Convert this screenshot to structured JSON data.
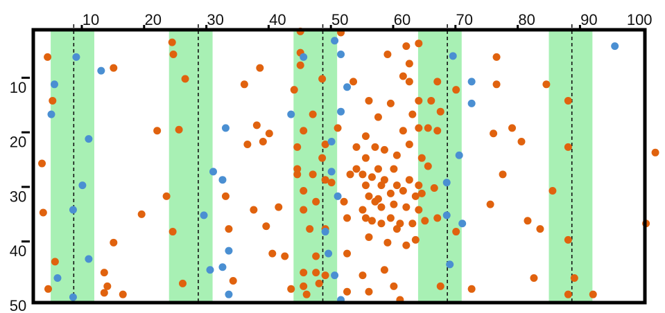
{
  "chart_data": {
    "type": "scatter",
    "title": "",
    "xlabel": "",
    "ylabel": "",
    "xlim": [
      0,
      100
    ],
    "ylim": [
      50,
      0
    ],
    "y_axis_inverted": true,
    "grid": false,
    "legend": "none",
    "x_ticks": [
      10,
      20,
      30,
      40,
      50,
      60,
      70,
      80,
      90,
      100
    ],
    "y_ticks": [
      10,
      20,
      30,
      40,
      50
    ],
    "bands": [
      {
        "from": 5,
        "to": 12,
        "center": 8.7
      },
      {
        "from": 24,
        "to": 31,
        "center": 28.7
      },
      {
        "from": 44,
        "to": 51,
        "center": 48.7
      },
      {
        "from": 64,
        "to": 71,
        "center": 68.7
      },
      {
        "from": 85,
        "to": 92,
        "center": 88.7
      }
    ],
    "colors": {
      "band": "#a8f0b4",
      "center_line": "#111111",
      "orange": "#e0620e",
      "blue": "#4a8fd2",
      "frame": "#000000"
    },
    "series": [
      {
        "color": "orange",
        "points": [
          [
            4.5,
            5
          ],
          [
            3.6,
            24.5
          ],
          [
            3.8,
            33.5
          ],
          [
            4.6,
            47.5
          ],
          [
            5.3,
            13
          ],
          [
            5.7,
            42.5
          ],
          [
            13.6,
            44.5
          ],
          [
            14.1,
            47
          ],
          [
            15.1,
            7
          ],
          [
            15.1,
            39
          ],
          [
            13.6,
            48.2
          ],
          [
            16.6,
            48.5
          ],
          [
            19.6,
            33.8
          ],
          [
            22.1,
            18.5
          ],
          [
            24.5,
            2.3
          ],
          [
            24.7,
            4.5
          ],
          [
            23.6,
            30.5
          ],
          [
            24.6,
            37
          ],
          [
            25.6,
            18.3
          ],
          [
            26.2,
            46.5
          ],
          [
            26.6,
            9
          ],
          [
            33.1,
            30.5
          ],
          [
            33.6,
            36.5
          ],
          [
            34.3,
            46
          ],
          [
            36.1,
            10
          ],
          [
            36.6,
            21
          ],
          [
            37.6,
            33
          ],
          [
            38.1,
            17.5
          ],
          [
            38.6,
            7
          ],
          [
            39.6,
            36
          ],
          [
            39.1,
            20.5
          ],
          [
            40.1,
            19
          ],
          [
            40.6,
            41
          ],
          [
            41.6,
            32.5
          ],
          [
            42.6,
            41.5
          ],
          [
            43.6,
            47.5
          ],
          [
            44.1,
            11
          ],
          [
            44.6,
            21.5
          ],
          [
            44.6,
            25.5
          ],
          [
            44.6,
            26.5
          ],
          [
            45.1,
            0.3
          ],
          [
            45.1,
            4.2
          ],
          [
            45.1,
            6.5
          ],
          [
            45.6,
            18.5
          ],
          [
            45.6,
            29.5
          ],
          [
            45.6,
            33
          ],
          [
            45.6,
            44.5
          ],
          [
            45.6,
            47
          ],
          [
            46.1,
            48.5
          ],
          [
            46.6,
            36.5
          ],
          [
            47.1,
            15.5
          ],
          [
            47.1,
            26.5
          ],
          [
            47.6,
            31.5
          ],
          [
            47.6,
            41.5
          ],
          [
            47.6,
            44.5
          ],
          [
            48.1,
            46.5
          ],
          [
            48.6,
            9
          ],
          [
            48.6,
            23.5
          ],
          [
            49.1,
            21
          ],
          [
            49.1,
            27.5
          ],
          [
            49.1,
            36.5
          ],
          [
            49.1,
            45
          ],
          [
            50.1,
            28
          ],
          [
            51.1,
            18
          ],
          [
            51.6,
            0.5
          ],
          [
            52.1,
            31.5
          ],
          [
            52.6,
            41
          ],
          [
            52.6,
            34.5
          ],
          [
            52.6,
            48
          ],
          [
            53.1,
            26.5
          ],
          [
            53.6,
            9.5
          ],
          [
            54.1,
            21.5
          ],
          [
            54.1,
            25.5
          ],
          [
            55.1,
            45
          ],
          [
            55.1,
            26.5
          ],
          [
            55.1,
            33
          ],
          [
            55.6,
            19.5
          ],
          [
            55.6,
            23.5
          ],
          [
            55.6,
            28.5
          ],
          [
            55.6,
            34.5
          ],
          [
            56.1,
            13
          ],
          [
            56.1,
            30.5
          ],
          [
            56.1,
            38
          ],
          [
            56.1,
            48
          ],
          [
            56.6,
            27
          ],
          [
            56.6,
            35
          ],
          [
            57.1,
            21.5
          ],
          [
            57.1,
            31.5
          ],
          [
            57.6,
            16
          ],
          [
            57.6,
            25.5
          ],
          [
            57.6,
            31
          ],
          [
            58.1,
            28.5
          ],
          [
            58.1,
            32.5
          ],
          [
            58.1,
            35.5
          ],
          [
            58.6,
            22
          ],
          [
            58.6,
            27.5
          ],
          [
            58.6,
            44
          ],
          [
            59.1,
            4.5
          ],
          [
            59.1,
            39
          ],
          [
            59.6,
            13.5
          ],
          [
            59.6,
            30
          ],
          [
            59.6,
            34.5
          ],
          [
            60.1,
            25.5
          ],
          [
            60.1,
            32
          ],
          [
            60.1,
            47
          ],
          [
            60.6,
            23
          ],
          [
            60.6,
            28.5
          ],
          [
            60.6,
            36.5
          ],
          [
            61.1,
            35.5
          ],
          [
            61.1,
            49.5
          ],
          [
            61.6,
            8.5
          ],
          [
            61.6,
            18.5
          ],
          [
            61.6,
            29.5
          ],
          [
            62.1,
            3
          ],
          [
            62.1,
            32.5
          ],
          [
            62.1,
            39.5
          ],
          [
            62.6,
            6.2
          ],
          [
            62.6,
            9.5
          ],
          [
            62.6,
            21
          ],
          [
            62.6,
            27.5
          ],
          [
            63.1,
            15.5
          ],
          [
            63.1,
            35.5
          ],
          [
            63.6,
            30.5
          ],
          [
            63.6,
            38.5
          ],
          [
            64.1,
            2.5
          ],
          [
            64.1,
            13
          ],
          [
            64.1,
            18
          ],
          [
            64.1,
            28.5
          ],
          [
            64.1,
            33
          ],
          [
            64.6,
            23.5
          ],
          [
            64.6,
            30
          ],
          [
            65.1,
            35
          ],
          [
            65.6,
            18
          ],
          [
            65.6,
            25
          ],
          [
            66.1,
            13
          ],
          [
            66.6,
            29
          ],
          [
            67.1,
            9.5
          ],
          [
            67.1,
            18.5
          ],
          [
            67.1,
            34.5
          ],
          [
            67.6,
            15
          ],
          [
            67.6,
            47
          ],
          [
            70.1,
            11
          ],
          [
            70.1,
            37
          ],
          [
            72.6,
            47.5
          ],
          [
            75.6,
            32
          ],
          [
            76.6,
            5
          ],
          [
            76.6,
            10
          ],
          [
            76.1,
            19
          ],
          [
            77.6,
            26.5
          ],
          [
            79.1,
            18
          ],
          [
            80.6,
            20.5
          ],
          [
            81.6,
            35
          ],
          [
            82.6,
            45.5
          ],
          [
            83.6,
            36.5
          ],
          [
            84.6,
            10
          ],
          [
            85.6,
            29.5
          ],
          [
            88.1,
            13
          ],
          [
            88.1,
            21.5
          ],
          [
            88.1,
            38.5
          ],
          [
            88.1,
            48.5
          ],
          [
            89.1,
            45.5
          ],
          [
            92.1,
            48.5
          ],
          [
            100.6,
            35.5
          ],
          [
            102.1,
            22.5
          ]
        ]
      },
      {
        "color": "blue",
        "points": [
          [
            5.6,
            10
          ],
          [
            5.1,
            15.5
          ],
          [
            8.6,
            33
          ],
          [
            8.6,
            49
          ],
          [
            6.1,
            45.5
          ],
          [
            9.1,
            5
          ],
          [
            10.1,
            28.5
          ],
          [
            11.1,
            20
          ],
          [
            11.1,
            42
          ],
          [
            13.1,
            7.5
          ],
          [
            29.6,
            34
          ],
          [
            31.1,
            26
          ],
          [
            30.6,
            44
          ],
          [
            32.6,
            27.5
          ],
          [
            32.6,
            43.5
          ],
          [
            33.1,
            18
          ],
          [
            33.6,
            40.5
          ],
          [
            33.6,
            48.5
          ],
          [
            43.6,
            15.5
          ],
          [
            45.6,
            5
          ],
          [
            49.1,
            37
          ],
          [
            49.6,
            41
          ],
          [
            50.1,
            20.5
          ],
          [
            50.1,
            26
          ],
          [
            50.6,
            2
          ],
          [
            50.6,
            45
          ],
          [
            51.1,
            30.5
          ],
          [
            51.6,
            4.5
          ],
          [
            51.6,
            15
          ],
          [
            51.6,
            49.5
          ],
          [
            52.6,
            10.5
          ],
          [
            68.6,
            34
          ],
          [
            68.6,
            28
          ],
          [
            69.1,
            43
          ],
          [
            69.6,
            4.8
          ],
          [
            70.6,
            23
          ],
          [
            71.1,
            35.5
          ],
          [
            72.6,
            9.5
          ],
          [
            72.6,
            13.5
          ],
          [
            95.6,
            3
          ]
        ]
      }
    ]
  }
}
